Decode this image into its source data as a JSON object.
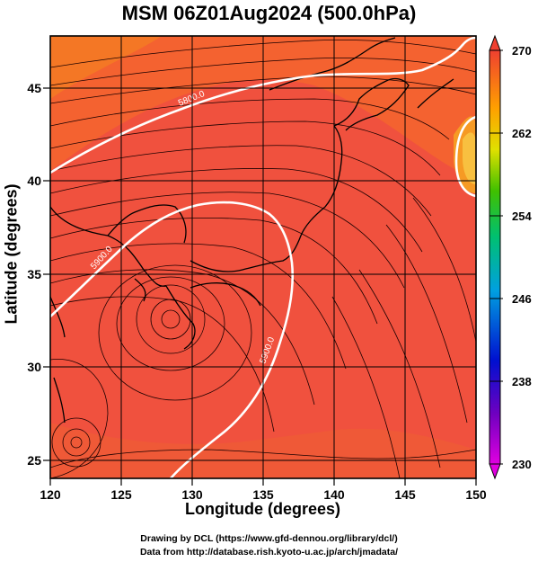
{
  "title": "MSM 06Z01Aug2024 (500.0hPa)",
  "x_axis": {
    "label": "Longitude (degrees)",
    "ticks": [
      "120",
      "125",
      "130",
      "135",
      "140",
      "145",
      "150"
    ],
    "range": [
      120,
      150
    ]
  },
  "y_axis": {
    "label": "Latitude  (degrees)",
    "ticks": [
      "25",
      "30",
      "35",
      "40",
      "45"
    ],
    "range": [
      23,
      48
    ]
  },
  "colorbar": {
    "ticks": [
      "270",
      "262",
      "254",
      "246",
      "238",
      "230"
    ],
    "range": [
      230,
      270
    ]
  },
  "contour_labels": [
    "5800.0",
    "5900.0",
    "5900.0"
  ],
  "credit_line1": "Drawing by DCL (https://www.gfd-dennou.org/library/dcl/)",
  "credit_line2": "Data from http://database.rish.kyoto-u.ac.jp/arch/jmadata/",
  "colors": {
    "field": "#f0513e",
    "field_warm": "#f46a30",
    "contour": "#ffffff",
    "coast": "#000000"
  }
}
